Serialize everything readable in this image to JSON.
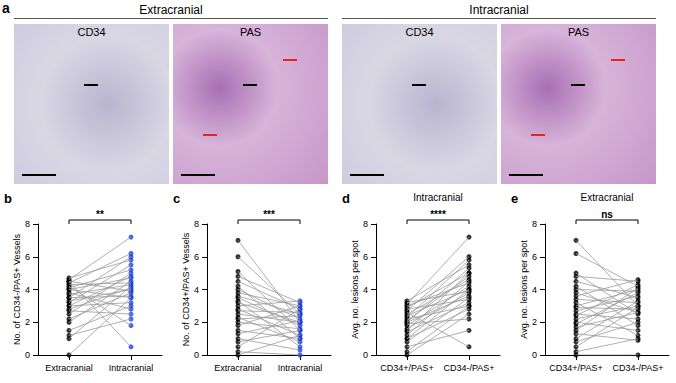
{
  "panel_a": {
    "letter": "a",
    "groups": [
      {
        "title": "Extracranial",
        "images": [
          "CD34",
          "PAS"
        ]
      },
      {
        "title": "Intracranial",
        "images": [
          "CD34",
          "PAS"
        ]
      }
    ]
  },
  "chart_data": [
    {
      "panel": "b",
      "type": "line",
      "annotation": "**",
      "categories": [
        "Extracranial",
        "Intracranial"
      ],
      "colors": [
        "#000000",
        "#1d3fe0"
      ],
      "ylabel": "No. of CD34-/PAS+ Vessels",
      "ylim": [
        0,
        8
      ],
      "yticks": [
        0,
        2,
        4,
        6,
        8
      ],
      "values": [
        [
          0,
          3.5
        ],
        [
          1,
          4.2
        ],
        [
          1.5,
          3.0
        ],
        [
          2,
          4.5
        ],
        [
          2.2,
          3.8
        ],
        [
          2.5,
          5
        ],
        [
          2.7,
          2.5
        ],
        [
          3,
          4.8
        ],
        [
          3,
          3.2
        ],
        [
          3.2,
          5.5
        ],
        [
          3.3,
          4
        ],
        [
          3.5,
          3.6
        ],
        [
          3.5,
          6
        ],
        [
          3.7,
          4.3
        ],
        [
          3.8,
          2.8
        ],
        [
          4,
          4.7
        ],
        [
          4,
          3.5
        ],
        [
          4.1,
          5.2
        ],
        [
          4.2,
          1.8
        ],
        [
          4.3,
          4.4
        ],
        [
          4.4,
          6.2
        ],
        [
          4.5,
          3.9
        ],
        [
          4.5,
          0.5
        ],
        [
          4.6,
          7.2
        ],
        [
          4.7,
          5.8
        ],
        [
          2.8,
          4.1
        ],
        [
          1.2,
          2.2
        ]
      ]
    },
    {
      "panel": "c",
      "type": "line",
      "annotation": "***",
      "categories": [
        "Extracranial",
        "Intracranial"
      ],
      "colors": [
        "#000000",
        "#1d3fe0"
      ],
      "ylabel": "No. of CD34+/PAS+ Vessels",
      "ylim": [
        0,
        8
      ],
      "yticks": [
        0,
        2,
        4,
        6,
        8
      ],
      "values": [
        [
          7,
          2
        ],
        [
          6,
          2.5
        ],
        [
          5.1,
          1.5
        ],
        [
          4.8,
          3.2
        ],
        [
          4.5,
          2.8
        ],
        [
          4.2,
          1
        ],
        [
          4,
          2.2
        ],
        [
          3.8,
          3
        ],
        [
          3.6,
          2.5
        ],
        [
          3.5,
          1.8
        ],
        [
          3.3,
          0.5
        ],
        [
          3.2,
          2
        ],
        [
          3,
          3.3
        ],
        [
          2.8,
          1.2
        ],
        [
          2.7,
          2.6
        ],
        [
          2.5,
          2
        ],
        [
          2.3,
          0.8
        ],
        [
          2.2,
          2.4
        ],
        [
          2,
          1.6
        ],
        [
          1.8,
          3
        ],
        [
          1.5,
          1
        ],
        [
          1.3,
          2.1
        ],
        [
          1,
          0.3
        ],
        [
          0.8,
          1.5
        ],
        [
          0.5,
          2.8
        ],
        [
          0.2,
          0
        ],
        [
          0,
          1.2
        ]
      ]
    },
    {
      "panel": "d",
      "type": "line",
      "title": "Intracranial",
      "annotation": "****",
      "categories": [
        "CD34+/PAS+",
        "CD34-/PAS+"
      ],
      "colors": [
        "#000000",
        "#000000"
      ],
      "ylabel": "Avg. no. lesions per spot",
      "ylim": [
        0,
        8
      ],
      "yticks": [
        0,
        2,
        4,
        6,
        8
      ],
      "values": [
        [
          0,
          2.5
        ],
        [
          0.2,
          3
        ],
        [
          0.5,
          1.5
        ],
        [
          0.8,
          3.5
        ],
        [
          1,
          4
        ],
        [
          1,
          2.8
        ],
        [
          1.2,
          4.5
        ],
        [
          1.4,
          3.2
        ],
        [
          1.5,
          5
        ],
        [
          1.6,
          3.8
        ],
        [
          1.8,
          4.2
        ],
        [
          1.9,
          2.2
        ],
        [
          2,
          5.3
        ],
        [
          2,
          3.6
        ],
        [
          2.1,
          4.8
        ],
        [
          2.2,
          3
        ],
        [
          2.3,
          5.8
        ],
        [
          2.4,
          4
        ],
        [
          2.5,
          4.6
        ],
        [
          2.6,
          0.5
        ],
        [
          2.7,
          6
        ],
        [
          2.8,
          3.4
        ],
        [
          2.9,
          5
        ],
        [
          3,
          4.4
        ],
        [
          3.1,
          7.2
        ],
        [
          3.2,
          3.9
        ],
        [
          3.3,
          5.5
        ]
      ]
    },
    {
      "panel": "e",
      "type": "line",
      "title": "Extracranial",
      "annotation": "ns",
      "categories": [
        "CD34+/PAS+",
        "CD34-/PAS+"
      ],
      "colors": [
        "#000000",
        "#000000"
      ],
      "ylabel": "Avg. no. lesions per spot",
      "ylim": [
        0,
        8
      ],
      "yticks": [
        0,
        2,
        4,
        6,
        8
      ],
      "values": [
        [
          7,
          3
        ],
        [
          6.2,
          4.2
        ],
        [
          5,
          2.5
        ],
        [
          4.8,
          4.5
        ],
        [
          4.5,
          3.5
        ],
        [
          4.2,
          1.8
        ],
        [
          4,
          3.9
        ],
        [
          3.8,
          2.6
        ],
        [
          3.6,
          4.6
        ],
        [
          3.4,
          3.2
        ],
        [
          3.2,
          1.2
        ],
        [
          3,
          4
        ],
        [
          2.9,
          2.8
        ],
        [
          2.7,
          3.6
        ],
        [
          2.5,
          2.2
        ],
        [
          2.4,
          4.3
        ],
        [
          2.2,
          3
        ],
        [
          2,
          1.5
        ],
        [
          1.9,
          3.8
        ],
        [
          1.7,
          2.6
        ],
        [
          1.5,
          4.1
        ],
        [
          1.3,
          0.9
        ],
        [
          1,
          3.3
        ],
        [
          0.8,
          2
        ],
        [
          0.5,
          2.9
        ],
        [
          0.2,
          1
        ],
        [
          0,
          0
        ]
      ]
    }
  ]
}
